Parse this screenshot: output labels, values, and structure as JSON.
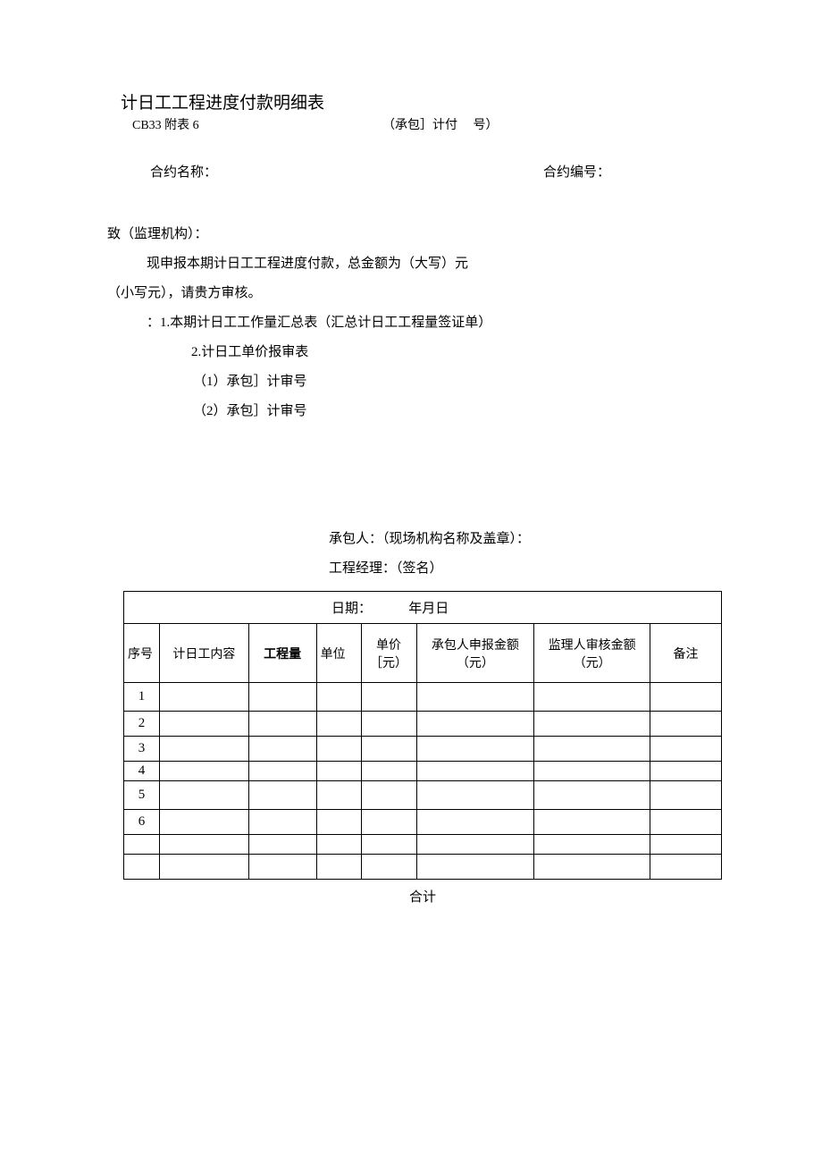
{
  "header": {
    "title": "计日工工程进度付款明细表",
    "form_code": "CB33 附表 6",
    "ref_label": "（承包］计付     号）"
  },
  "contract": {
    "name_label": "合约名称：",
    "number_label": "合约编号："
  },
  "body": {
    "addressee": "致（监理机构）：",
    "line1": "现申报本期计日工工程进度付款，总金额为（大写）元",
    "line2": "（小写元），请贵方审核。",
    "line3": "：1.本期计日工工作量汇总表（汇总计日工工程量签证单）",
    "line4": "2.计日工单价报审表",
    "line5": "（1）承包］计审号",
    "line6": "（2）承包］计审号"
  },
  "signature": {
    "contractor": "承包人：（现场机构名称及盖章）：",
    "manager": "工程经理：（签名）",
    "date_label": "日期：           年月日"
  },
  "table": {
    "columns": [
      {
        "label": "序号",
        "class": "col-seq",
        "align": "left"
      },
      {
        "label": "计日工内容",
        "class": "col-content"
      },
      {
        "label": "工程量",
        "class": "col-qty",
        "bold": true
      },
      {
        "label": "单位",
        "class": "col-unit",
        "align": "left"
      },
      {
        "label": "单价［元）",
        "class": "col-price"
      },
      {
        "label": "承包人申报金额（元）",
        "class": "col-amount"
      },
      {
        "label": "监理人审核金额（元）",
        "class": "col-audit"
      },
      {
        "label": "备注",
        "class": "col-remark"
      }
    ],
    "rows": [
      {
        "seq": "1",
        "height": "tall"
      },
      {
        "seq": "2",
        "height": ""
      },
      {
        "seq": "3",
        "height": ""
      },
      {
        "seq": "4",
        "height": "thin"
      },
      {
        "seq": "5",
        "height": "tall"
      },
      {
        "seq": "6",
        "height": ""
      },
      {
        "seq": "",
        "height": "thin"
      },
      {
        "seq": "",
        "height": ""
      }
    ],
    "total_label": "合计"
  },
  "styles": {
    "text_color": "#000000",
    "background_color": "#ffffff",
    "border_color": "#000000",
    "body_fontsize": 15,
    "title_fontsize": 19,
    "th_fontsize": 14
  }
}
